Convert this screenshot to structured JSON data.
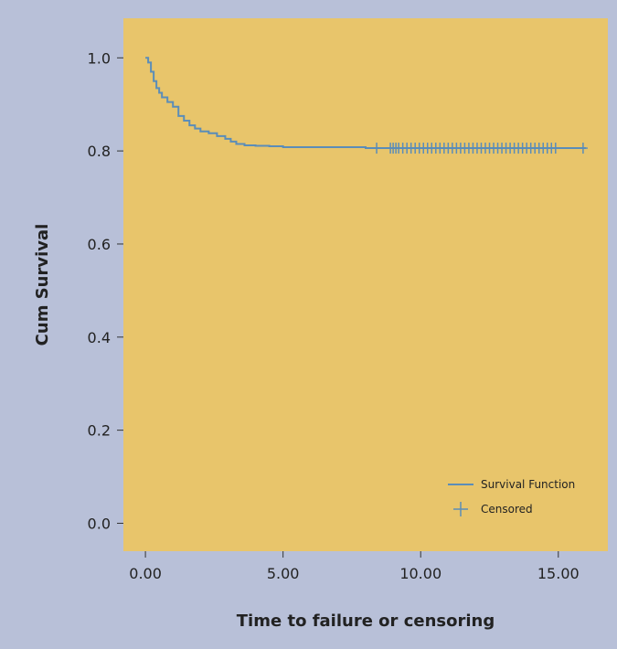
{
  "chart_data": {
    "type": "line",
    "title": "",
    "xlabel": "Time to failure or censoring",
    "ylabel": "Cum Survival",
    "xlim": [
      -0.8,
      16.8
    ],
    "ylim": [
      -0.06,
      1.085
    ],
    "grid": false,
    "legend_position": "bottom-right",
    "xticks": [
      "0.00",
      "5.00",
      "10.00",
      "15.00"
    ],
    "xtick_values": [
      0,
      5,
      10,
      15
    ],
    "yticks": [
      "0.0",
      "0.2",
      "0.4",
      "0.6",
      "0.8",
      "1.0"
    ],
    "ytick_values": [
      0,
      0.2,
      0.4,
      0.6,
      0.8,
      1.0
    ],
    "series": [
      {
        "name": "Survival Function",
        "color": "#5b8db8",
        "x": [
          0,
          0.1,
          0.2,
          0.3,
          0.4,
          0.5,
          0.6,
          0.8,
          1.0,
          1.2,
          1.4,
          1.6,
          1.8,
          2.0,
          2.3,
          2.6,
          2.9,
          3.1,
          3.3,
          3.6,
          4.0,
          4.5,
          5.0,
          6.0,
          7.0,
          8.0,
          9.0,
          10.0,
          11.0,
          12.0,
          13.0,
          14.0,
          15.0,
          16.0
        ],
        "y": [
          1.0,
          0.99,
          0.97,
          0.95,
          0.935,
          0.925,
          0.915,
          0.905,
          0.895,
          0.875,
          0.865,
          0.855,
          0.848,
          0.842,
          0.838,
          0.832,
          0.826,
          0.82,
          0.815,
          0.812,
          0.811,
          0.81,
          0.808,
          0.808,
          0.808,
          0.806,
          0.806,
          0.806,
          0.806,
          0.806,
          0.806,
          0.806,
          0.806,
          0.806
        ]
      }
    ],
    "censored": {
      "name": "Censored",
      "color": "#5b8db8",
      "x": [
        8.4,
        8.9,
        9.0,
        9.1,
        9.2,
        9.35,
        9.5,
        9.65,
        9.8,
        9.95,
        10.1,
        10.25,
        10.4,
        10.55,
        10.7,
        10.85,
        11.0,
        11.15,
        11.3,
        11.45,
        11.6,
        11.75,
        11.9,
        12.05,
        12.2,
        12.35,
        12.5,
        12.65,
        12.8,
        12.95,
        13.1,
        13.25,
        13.4,
        13.55,
        13.7,
        13.85,
        14.0,
        14.15,
        14.3,
        14.45,
        14.6,
        14.75,
        14.9,
        15.9
      ],
      "y": 0.806
    },
    "legend": [
      {
        "label": "Survival Function",
        "symbol": "line"
      },
      {
        "label": "Censored",
        "symbol": "plus"
      }
    ],
    "colors": {
      "background": "#b8c0d8",
      "plot_area": "#e8c56b",
      "series": "#5b8db8"
    }
  }
}
